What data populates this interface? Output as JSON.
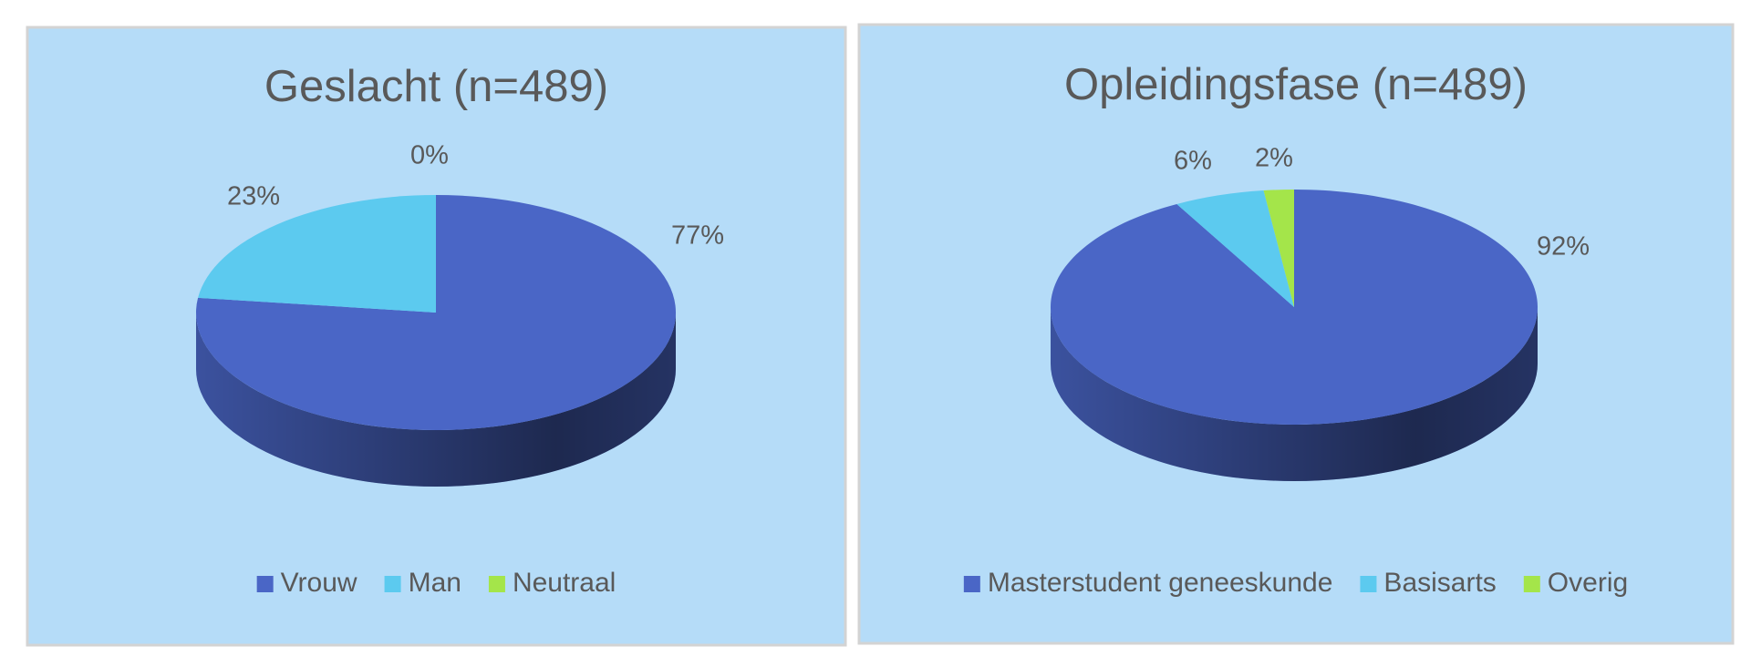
{
  "chart_data": [
    {
      "type": "pie",
      "title": "Geslacht (n=489)",
      "categories": [
        "Vrouw",
        "Man",
        "Neutraal"
      ],
      "values": [
        77,
        23,
        0
      ],
      "value_labels": [
        "77%",
        "23%",
        "0%"
      ],
      "colors": [
        "#4a66c6",
        "#5ccaef",
        "#a4e54a"
      ]
    },
    {
      "type": "pie",
      "title": "Opleidingsfase (n=489)",
      "categories": [
        "Masterstudent geneeskunde",
        "Basisarts",
        "Overig"
      ],
      "values": [
        92,
        6,
        2
      ],
      "value_labels": [
        "92%",
        "6%",
        "2%"
      ],
      "colors": [
        "#4a66c6",
        "#5ccaef",
        "#a4e54a"
      ]
    }
  ]
}
